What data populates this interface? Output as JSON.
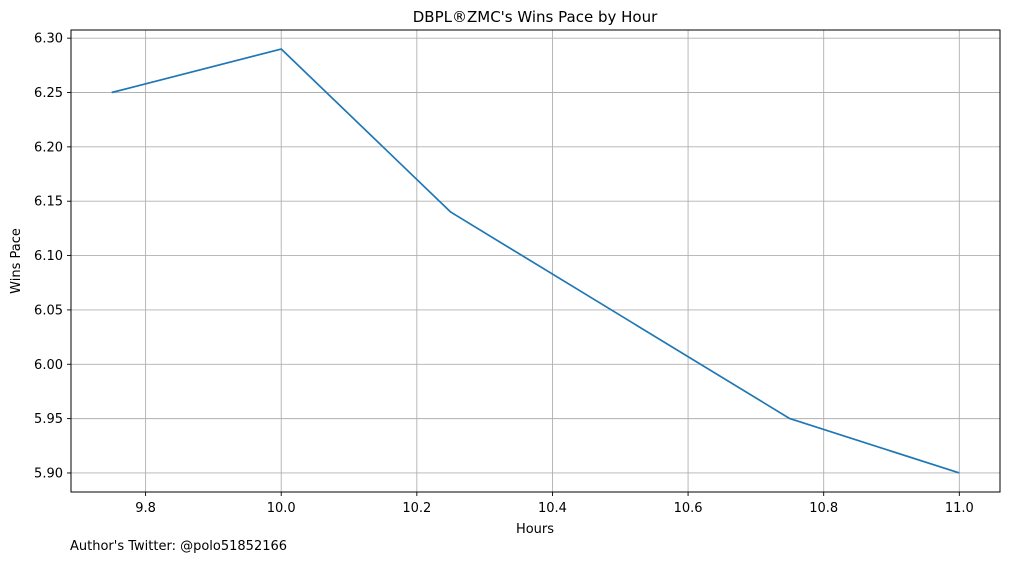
{
  "chart_data": {
    "type": "line",
    "title": "DBPL®ZMC's Wins Pace by Hour",
    "xlabel": "Hours",
    "ylabel": "Wins Pace",
    "footer": "Author's Twitter: @polo51852166",
    "grid": true,
    "xlim": [
      9.69,
      11.06
    ],
    "ylim": [
      5.8825,
      6.3075
    ],
    "x_ticks": [
      "9.8",
      "10.0",
      "10.2",
      "10.4",
      "10.6",
      "10.8",
      "11.0"
    ],
    "y_ticks": [
      "5.90",
      "5.95",
      "6.00",
      "6.05",
      "6.10",
      "6.15",
      "6.20",
      "6.25",
      "6.30"
    ],
    "series": [
      {
        "color": "#1f77b4",
        "x": [
          9.75,
          10.0,
          10.25,
          10.75,
          11.0
        ],
        "y": [
          6.25,
          6.29,
          6.14,
          5.95,
          5.9
        ]
      }
    ]
  }
}
